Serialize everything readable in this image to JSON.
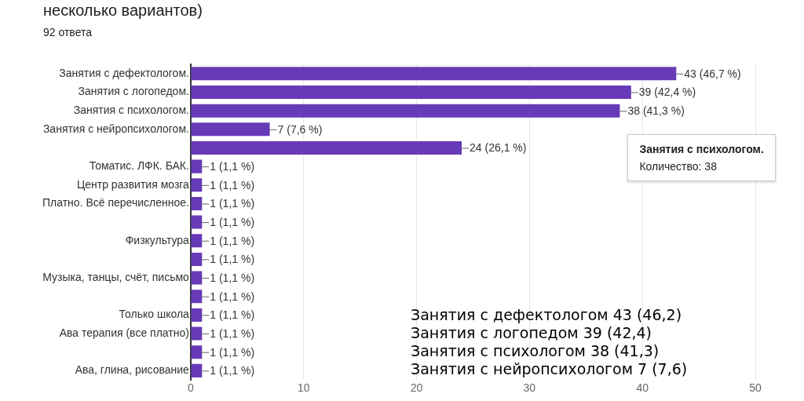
{
  "chart_data": {
    "type": "bar",
    "orientation": "horizontal",
    "title": "несколько вариантов)",
    "subtitle": "92 ответа",
    "categories": [
      "Занятия с дефектологом.",
      "Занятия с логопедом.",
      "Занятия с психологом.",
      "Занятия с нейропсихологом.",
      null,
      "Томатис. ЛФК. БАК.",
      "Центр развития мозга",
      "Платно. Всё перечисленное.",
      null,
      "Физкультура",
      null,
      "Музыка, танцы, счёт, письмо",
      null,
      "Только школа",
      "Ава терапия (все платно)",
      null,
      "Ава, глина, рисование"
    ],
    "values": [
      43,
      39,
      38,
      7,
      24,
      1,
      1,
      1,
      1,
      1,
      1,
      1,
      1,
      1,
      1,
      1,
      1
    ],
    "value_labels": [
      "43 (46,7 %)",
      "39 (42,4 %)",
      "38 (41,3 %)",
      "7 (7,6 %)",
      "24 (26,1 %)",
      "1 (1,1 %)",
      "1 (1,1 %)",
      "1 (1,1 %)",
      "1 (1,1 %)",
      "1 (1,1 %)",
      "1 (1,1 %)",
      "1 (1,1 %)",
      "1 (1,1 %)",
      "1 (1,1 %)",
      "1 (1,1 %)",
      "1 (1,1 %)",
      "1 (1,1 %)"
    ],
    "color": "#673ab7",
    "xlim": [
      0,
      50
    ],
    "xticks": [
      0,
      10,
      20,
      30,
      40,
      50
    ],
    "grid": "x",
    "legend": false,
    "annotations": [
      {
        "text": "Занятия с психологом.\nКоличество: 38",
        "x": 38,
        "y": "Занятия с психологом."
      },
      "Занятия с дефектологом 43 (46,2)",
      "Занятия с логопедом 39 (42,4)",
      "Занятия с психологом 38 (41,3)",
      "Занятия с нейропсихологом 7 (7,6)"
    ]
  }
}
